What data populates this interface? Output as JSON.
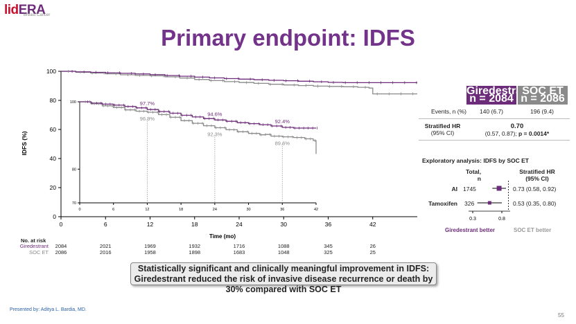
{
  "header": {
    "logo_lid": "lid",
    "logo_era": "ERA",
    "logo_sub": "Breast Cancer",
    "title": "Primary endpoint: IDFS"
  },
  "colors": {
    "giredestrant": "#6d2c7a",
    "soc": "#8a8a8a",
    "title": "#74338a"
  },
  "chart_data": [
    {
      "type": "line",
      "title": "",
      "xlabel": "Time (mo)",
      "ylabel": "IDFS (%)",
      "xlim": [
        0,
        48
      ],
      "ylim": [
        0,
        100
      ],
      "xticks": [
        0,
        6,
        12,
        18,
        24,
        30,
        36,
        42
      ],
      "yticks": [
        0,
        20,
        40,
        60,
        80,
        100
      ],
      "series": [
        {
          "name": "Giredestrant",
          "x": [
            0,
            2,
            4,
            6,
            8,
            10,
            12,
            14,
            16,
            18,
            20,
            22,
            24,
            26,
            28,
            30,
            32,
            34,
            36,
            38,
            40,
            42,
            44,
            46,
            48
          ],
          "y": [
            100,
            99.6,
            99.3,
            99.0,
            98.6,
            98.2,
            97.7,
            97.1,
            96.6,
            96.0,
            95.5,
            95.0,
            94.6,
            94.2,
            93.8,
            93.5,
            93.2,
            92.8,
            92.4,
            92.2,
            92.2,
            92.2,
            92.2,
            92.2,
            92.2
          ]
        },
        {
          "name": "SOC ET",
          "x": [
            0,
            2,
            4,
            6,
            8,
            10,
            12,
            14,
            16,
            18,
            20,
            22,
            24,
            26,
            28,
            30,
            32,
            33,
            34,
            36,
            38,
            40,
            41.5,
            42,
            44,
            46,
            48
          ],
          "y": [
            100,
            99.4,
            98.8,
            98.3,
            97.6,
            97.2,
            96.9,
            96.2,
            95.4,
            94.4,
            93.6,
            92.9,
            92.3,
            91.7,
            91.1,
            90.6,
            90.2,
            90.3,
            89.8,
            89.6,
            89.4,
            89.0,
            88.5,
            84.5,
            84.5,
            84.5,
            84.5
          ]
        }
      ]
    },
    {
      "type": "line",
      "title": "",
      "xlabel": "",
      "ylabel": "",
      "xlim": [
        0,
        42
      ],
      "ylim": [
        70,
        100
      ],
      "xticks": [
        0,
        6,
        12,
        18,
        24,
        30,
        36,
        42
      ],
      "yticks": [
        70,
        80,
        100
      ],
      "annotations": [
        {
          "x": 12,
          "y": 97.7,
          "label": "97.7%",
          "series": "Giredestrant"
        },
        {
          "x": 24,
          "y": 94.6,
          "label": "94.6%",
          "series": "Giredestrant"
        },
        {
          "x": 36,
          "y": 92.4,
          "label": "92.4%",
          "series": "Giredestrant"
        },
        {
          "x": 12,
          "y": 96.9,
          "label": "96.9%",
          "series": "SOC ET"
        },
        {
          "x": 24,
          "y": 92.3,
          "label": "92.3%",
          "series": "SOC ET"
        },
        {
          "x": 36,
          "y": 89.6,
          "label": "89.6%",
          "series": "SOC ET"
        }
      ]
    }
  ],
  "risk_table": {
    "label": "No. at risk",
    "rows": [
      {
        "name": "Giredestrant",
        "values": [
          "2084",
          "2021",
          "1969",
          "1932",
          "1716",
          "1088",
          "345",
          "26"
        ]
      },
      {
        "name": "SOC ET",
        "values": [
          "2086",
          "2016",
          "1958",
          "1898",
          "1683",
          "1048",
          "325",
          "25"
        ]
      }
    ]
  },
  "hr_table": {
    "col1_title": "Giredestrant",
    "col1_n": "n = 2084",
    "col2_title": "SOC ET",
    "col2_n": "n = 2086",
    "events_label": "Events, n (%)",
    "events_g": "140 (6.7)",
    "events_s": "196 (9.4)",
    "hr_label": "Stratified HR",
    "ci_label": "(95% CI)",
    "hr_value": "0.70",
    "hr_ci_prefix": "(0.57, 0.87); ",
    "hr_p": "p = 0.0014*"
  },
  "exploratory": {
    "title": "Exploratory analysis: IDFS by SOC ET",
    "col_total_1": "Total,",
    "col_total_2": "n",
    "col_hr_1": "Stratified HR",
    "col_hr_2": "(95% CI)",
    "rows": [
      {
        "label": "AI",
        "n": "1745",
        "hr": 0.73,
        "lo": 0.58,
        "hi": 0.92,
        "text": "0.73 (0.58, 0.92)"
      },
      {
        "label": "Tamoxifen",
        "n": "326",
        "hr": 0.53,
        "lo": 0.35,
        "hi": 0.8,
        "text": "0.53 (0.35, 0.80)"
      }
    ],
    "axis_ticks": [
      "0.3",
      "0.8"
    ],
    "better_left": "Giredestrant better",
    "better_right": "SOC ET better"
  },
  "conclusion": {
    "line1": "Statistically significant and clinically meaningful improvement in IDFS:",
    "line2": "Giredestrant reduced the risk of invasive disease recurrence or death by 30% compared with SOC ET"
  },
  "footer": {
    "presenter": "Presented by: Aditya L. Bardia, MD.",
    "page": "55"
  }
}
